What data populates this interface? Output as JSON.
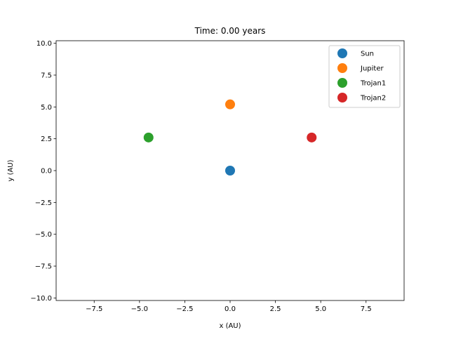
{
  "chart_data": {
    "type": "scatter",
    "title": "Time: 0.00 years",
    "xlabel": "x (AU)",
    "ylabel": "y (AU)",
    "xlim": [
      -9.6,
      9.6
    ],
    "ylim": [
      -10.2,
      10.2
    ],
    "xticks": [
      -7.5,
      -5.0,
      -2.5,
      0.0,
      2.5,
      5.0,
      7.5
    ],
    "xtick_labels": [
      "−7.5",
      "−5.0",
      "−2.5",
      "0.0",
      "2.5",
      "5.0",
      "7.5"
    ],
    "yticks": [
      -10.0,
      -7.5,
      -5.0,
      -2.5,
      0.0,
      2.5,
      5.0,
      7.5,
      10.0
    ],
    "ytick_labels": [
      "−10.0",
      "−7.5",
      "−5.0",
      "−2.5",
      "0.0",
      "2.5",
      "5.0",
      "7.5",
      "10.0"
    ],
    "grid": false,
    "legend_position": "top-right",
    "series": [
      {
        "name": "Sun",
        "color": "#1f77b4",
        "x": [
          0.0
        ],
        "y": [
          0.0
        ]
      },
      {
        "name": "Jupiter",
        "color": "#ff7f0e",
        "x": [
          0.0
        ],
        "y": [
          5.2
        ]
      },
      {
        "name": "Trojan1",
        "color": "#2ca02c",
        "x": [
          -4.5
        ],
        "y": [
          2.6
        ]
      },
      {
        "name": "Trojan2",
        "color": "#d62728",
        "x": [
          4.5
        ],
        "y": [
          2.6
        ]
      }
    ]
  }
}
